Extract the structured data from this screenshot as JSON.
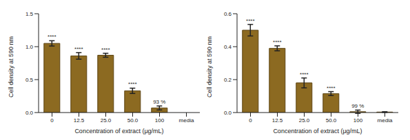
{
  "chart_data": [
    {
      "type": "bar",
      "x_label": "Concentration of extract (μg/mL)",
      "y_label": "Cell density at 590 nm",
      "categories": [
        "0",
        "12.5",
        "25.0",
        "50.0",
        "100",
        "media"
      ],
      "values": [
        1.05,
        0.86,
        0.87,
        0.33,
        0.07,
        0.0
      ],
      "errors": [
        0.04,
        0.05,
        0.03,
        0.04,
        0.03,
        0.04
      ],
      "annotations": [
        "****",
        "****",
        "****",
        "****",
        "93 %",
        null
      ],
      "color": "#8c6a21",
      "ylim": [
        0,
        1.5
      ],
      "yticks": [
        {
          "value": 0,
          "label": "0.0"
        },
        0.5,
        {
          "value": 1,
          "label": "1.0"
        },
        1.5
      ]
    },
    {
      "type": "bar",
      "x_label": "Concentration of extract (μg/mL)",
      "y_label": "Cell density at 590 nm",
      "categories": [
        "0",
        "12.5",
        "25.0",
        "50.0",
        "100",
        "media"
      ],
      "values": [
        0.5,
        0.39,
        0.18,
        0.115,
        0.005,
        0.003
      ],
      "errors": [
        0.035,
        0.015,
        0.03,
        0.012,
        0.01,
        0.002
      ],
      "annotations": [
        "****",
        "****",
        "****",
        "****",
        "99 %",
        null
      ],
      "color": "#8c6a21",
      "ylim": [
        0,
        0.6
      ],
      "yticks": [
        {
          "value": 0,
          "label": "0.0"
        },
        0.2,
        0.4,
        0.6
      ]
    }
  ]
}
